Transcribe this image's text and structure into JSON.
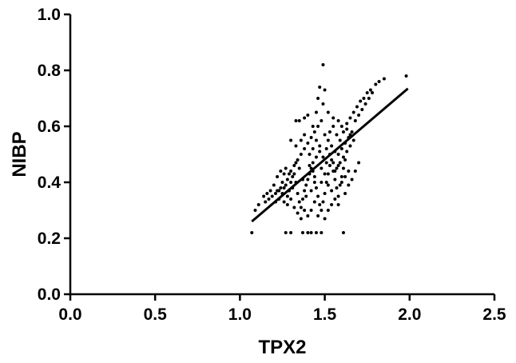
{
  "chart_data": {
    "type": "scatter",
    "xlabel": "TPX2",
    "ylabel": "NIBP",
    "xlim": [
      0,
      2.5
    ],
    "ylim": [
      0,
      1.0
    ],
    "xticks": [
      0.0,
      0.5,
      1.0,
      1.5,
      2.0,
      2.5
    ],
    "yticks": [
      0.0,
      0.2,
      0.4,
      0.6,
      0.8,
      1.0
    ],
    "xtick_labels": [
      "0.0",
      "0.5",
      "1.0",
      "1.5",
      "2.0",
      "2.5"
    ],
    "ytick_labels": [
      "0.0",
      "0.2",
      "0.4",
      "0.6",
      "0.8",
      "1.0"
    ],
    "grid": false,
    "point_color": "#000000",
    "series": [
      {
        "points": [
          [
            1.07,
            0.22
          ],
          [
            1.27,
            0.22
          ],
          [
            1.3,
            0.22
          ],
          [
            1.37,
            0.22
          ],
          [
            1.4,
            0.22
          ],
          [
            1.42,
            0.22
          ],
          [
            1.45,
            0.22
          ],
          [
            1.48,
            0.22
          ],
          [
            1.61,
            0.22
          ],
          [
            1.09,
            0.3
          ],
          [
            1.11,
            0.32
          ],
          [
            1.15,
            0.33
          ],
          [
            1.17,
            0.34
          ],
          [
            1.19,
            0.35
          ],
          [
            1.21,
            0.36
          ],
          [
            1.22,
            0.37
          ],
          [
            1.24,
            0.38
          ],
          [
            1.26,
            0.38
          ],
          [
            1.28,
            0.32
          ],
          [
            1.28,
            0.35
          ],
          [
            1.29,
            0.37
          ],
          [
            1.3,
            0.4
          ],
          [
            1.31,
            0.42
          ],
          [
            1.32,
            0.43
          ],
          [
            1.33,
            0.4
          ],
          [
            1.34,
            0.36
          ],
          [
            1.35,
            0.33
          ],
          [
            1.36,
            0.31
          ],
          [
            1.37,
            0.34
          ],
          [
            1.38,
            0.37
          ],
          [
            1.39,
            0.39
          ],
          [
            1.4,
            0.41
          ],
          [
            1.41,
            0.43
          ],
          [
            1.42,
            0.45
          ],
          [
            1.43,
            0.47
          ],
          [
            1.44,
            0.42
          ],
          [
            1.45,
            0.38
          ],
          [
            1.46,
            0.35
          ],
          [
            1.47,
            0.32
          ],
          [
            1.48,
            0.3
          ],
          [
            1.49,
            0.33
          ],
          [
            1.5,
            0.36
          ],
          [
            1.51,
            0.4
          ],
          [
            1.52,
            0.43
          ],
          [
            1.53,
            0.46
          ],
          [
            1.54,
            0.48
          ],
          [
            1.55,
            0.44
          ],
          [
            1.56,
            0.41
          ],
          [
            1.57,
            0.38
          ],
          [
            1.58,
            0.35
          ],
          [
            1.59,
            0.39
          ],
          [
            1.6,
            0.42
          ],
          [
            1.61,
            0.45
          ],
          [
            1.62,
            0.48
          ],
          [
            1.22,
            0.42
          ],
          [
            1.24,
            0.44
          ],
          [
            1.26,
            0.43
          ],
          [
            1.28,
            0.41
          ],
          [
            1.3,
            0.44
          ],
          [
            1.32,
            0.46
          ],
          [
            1.34,
            0.48
          ],
          [
            1.36,
            0.5
          ],
          [
            1.38,
            0.52
          ],
          [
            1.4,
            0.54
          ],
          [
            1.42,
            0.56
          ],
          [
            1.44,
            0.58
          ],
          [
            1.46,
            0.6
          ],
          [
            1.48,
            0.62
          ],
          [
            1.5,
            0.57
          ],
          [
            1.52,
            0.55
          ],
          [
            1.54,
            0.53
          ],
          [
            1.56,
            0.51
          ],
          [
            1.58,
            0.5
          ],
          [
            1.6,
            0.52
          ],
          [
            1.62,
            0.54
          ],
          [
            1.64,
            0.56
          ],
          [
            1.66,
            0.58
          ],
          [
            1.68,
            0.62
          ],
          [
            1.7,
            0.64
          ],
          [
            1.72,
            0.66
          ],
          [
            1.74,
            0.68
          ],
          [
            1.76,
            0.7
          ],
          [
            1.78,
            0.72
          ],
          [
            1.8,
            0.75
          ],
          [
            1.82,
            0.76
          ],
          [
            1.85,
            0.77
          ],
          [
            1.98,
            0.78
          ],
          [
            1.49,
            0.82
          ],
          [
            1.47,
            0.74
          ],
          [
            1.5,
            0.73
          ],
          [
            1.46,
            0.7
          ],
          [
            1.49,
            0.68
          ],
          [
            1.45,
            0.65
          ],
          [
            1.52,
            0.65
          ],
          [
            1.55,
            0.63
          ],
          [
            1.58,
            0.62
          ],
          [
            1.6,
            0.6
          ],
          [
            1.63,
            0.59
          ],
          [
            1.65,
            0.57
          ],
          [
            1.33,
            0.62
          ],
          [
            1.35,
            0.62
          ],
          [
            1.38,
            0.63
          ],
          [
            1.4,
            0.64
          ],
          [
            1.43,
            0.6
          ],
          [
            1.3,
            0.55
          ],
          [
            1.33,
            0.53
          ],
          [
            1.36,
            0.55
          ],
          [
            1.38,
            0.57
          ],
          [
            1.41,
            0.5
          ],
          [
            1.43,
            0.52
          ],
          [
            1.45,
            0.55
          ],
          [
            1.47,
            0.51
          ],
          [
            1.49,
            0.49
          ],
          [
            1.51,
            0.47
          ],
          [
            1.53,
            0.5
          ],
          [
            1.55,
            0.47
          ],
          [
            1.57,
            0.45
          ],
          [
            1.59,
            0.47
          ],
          [
            1.61,
            0.49
          ],
          [
            1.63,
            0.51
          ],
          [
            1.65,
            0.53
          ],
          [
            1.67,
            0.55
          ],
          [
            1.27,
            0.45
          ],
          [
            1.25,
            0.4
          ],
          [
            1.23,
            0.37
          ],
          [
            1.2,
            0.39
          ],
          [
            1.18,
            0.37
          ],
          [
            1.16,
            0.36
          ],
          [
            1.14,
            0.35
          ],
          [
            1.26,
            0.33
          ],
          [
            1.3,
            0.34
          ],
          [
            1.32,
            0.31
          ],
          [
            1.34,
            0.29
          ],
          [
            1.36,
            0.27
          ],
          [
            1.38,
            0.3
          ],
          [
            1.4,
            0.28
          ],
          [
            1.42,
            0.3
          ],
          [
            1.44,
            0.33
          ],
          [
            1.46,
            0.28
          ],
          [
            1.5,
            0.27
          ],
          [
            1.52,
            0.3
          ],
          [
            1.54,
            0.32
          ],
          [
            1.56,
            0.34
          ],
          [
            1.58,
            0.32
          ],
          [
            1.62,
            0.36
          ],
          [
            1.64,
            0.39
          ],
          [
            1.66,
            0.41
          ],
          [
            1.68,
            0.44
          ],
          [
            1.7,
            0.47
          ],
          [
            1.48,
            0.45
          ],
          [
            1.44,
            0.4
          ],
          [
            1.42,
            0.37
          ],
          [
            1.39,
            0.35
          ],
          [
            1.37,
            0.41
          ],
          [
            1.35,
            0.45
          ],
          [
            1.33,
            0.47
          ],
          [
            1.31,
            0.38
          ],
          [
            1.29,
            0.43
          ],
          [
            1.27,
            0.39
          ],
          [
            1.25,
            0.36
          ],
          [
            1.23,
            0.34
          ],
          [
            1.21,
            0.33
          ],
          [
            1.51,
            0.52
          ],
          [
            1.53,
            0.58
          ],
          [
            1.55,
            0.6
          ],
          [
            1.57,
            0.57
          ],
          [
            1.59,
            0.55
          ],
          [
            1.61,
            0.58
          ],
          [
            1.63,
            0.61
          ],
          [
            1.65,
            0.63
          ],
          [
            1.67,
            0.65
          ],
          [
            1.69,
            0.67
          ],
          [
            1.71,
            0.69
          ],
          [
            1.73,
            0.7
          ],
          [
            1.75,
            0.72
          ],
          [
            1.77,
            0.73
          ],
          [
            1.48,
            0.4
          ],
          [
            1.5,
            0.43
          ],
          [
            1.52,
            0.39
          ],
          [
            1.54,
            0.37
          ],
          [
            1.56,
            0.44
          ],
          [
            1.58,
            0.46
          ],
          [
            1.6,
            0.4
          ],
          [
            1.62,
            0.42
          ],
          [
            1.64,
            0.44
          ],
          [
            1.41,
            0.46
          ],
          [
            1.43,
            0.44
          ],
          [
            1.45,
            0.49
          ],
          [
            1.47,
            0.53
          ]
        ]
      }
    ],
    "fit_line": {
      "x": [
        1.07,
        1.99
      ],
      "y": [
        0.26,
        0.735
      ]
    }
  }
}
